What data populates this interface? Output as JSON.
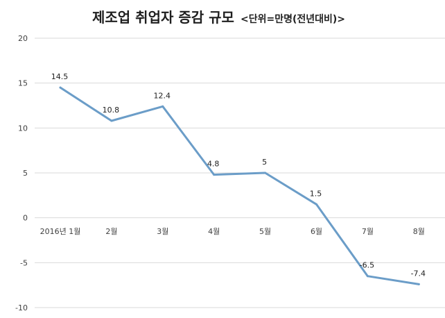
{
  "chart_data": {
    "type": "line",
    "title": "제조업 취업자 증감 규모",
    "subtitle": "<단위=만명(전년대비)>",
    "categories": [
      "2016년 1월",
      "2월",
      "3월",
      "4월",
      "5월",
      "6월",
      "7월",
      "8월"
    ],
    "series": [
      {
        "values": [
          14.5,
          10.8,
          12.4,
          4.8,
          5,
          1.5,
          -6.5,
          -7.4
        ],
        "data_labels": [
          "14.5",
          "10.8",
          "12.4",
          "4.8",
          "5",
          "1.5",
          "-6.5",
          "-7.4"
        ]
      }
    ],
    "ylim": [
      -10,
      20
    ],
    "yticks": [
      20,
      15,
      10,
      5,
      0,
      -5,
      -10
    ],
    "ytick_labels": [
      "20",
      "15",
      "10",
      "5",
      "0",
      "-5",
      "-10"
    ],
    "grid": true,
    "legend": "none",
    "colors": {
      "line": "#6b9dc8",
      "grid": "#d9d9d9",
      "text": "#404040"
    }
  }
}
